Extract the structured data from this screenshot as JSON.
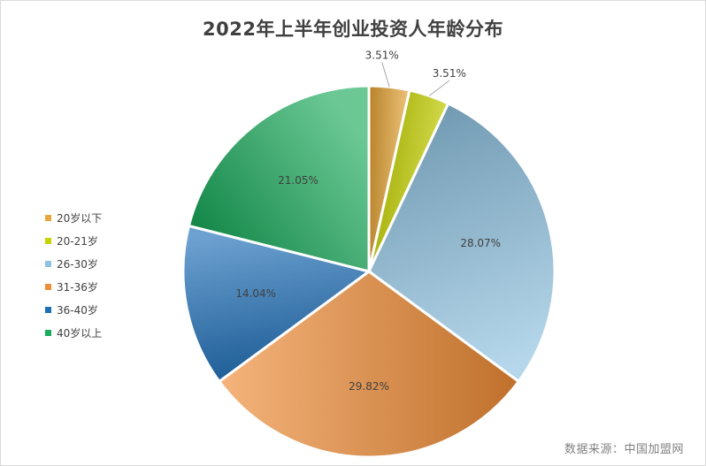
{
  "chart_data": {
    "type": "pie",
    "title": "2022年上半年创业投资人年龄分布",
    "categories": [
      "20岁以下",
      "20-21岁",
      "26-30岁",
      "31-36岁",
      "36-40岁",
      "40岁以上"
    ],
    "values": [
      3.51,
      3.51,
      28.07,
      29.82,
      14.04,
      21.05
    ],
    "labels": [
      "3.51%",
      "3.51%",
      "28.07%",
      "29.82%",
      "14.04%",
      "21.05%"
    ],
    "colors": [
      "#e8a838",
      "#c8d400",
      "#8ec2e0",
      "#ef8c36",
      "#1f6fb8",
      "#1bab5c"
    ],
    "legend": "left"
  },
  "source": "数据来源：中国加盟网"
}
